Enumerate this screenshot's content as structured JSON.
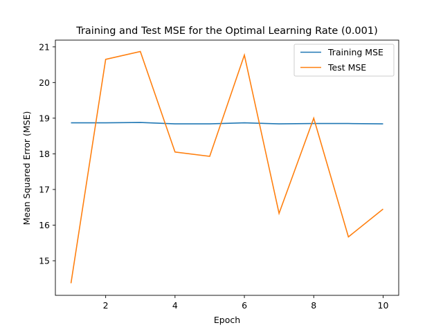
{
  "chart_data": {
    "type": "line",
    "title": "Training and Test MSE for the Optimal Learning Rate (0.001)",
    "xlabel": "Epoch",
    "ylabel": "Mean Squared Error (MSE)",
    "x": [
      1,
      2,
      3,
      4,
      5,
      6,
      7,
      8,
      9,
      10
    ],
    "xlim": [
      0.55,
      10.45
    ],
    "ylim": [
      14.03,
      21.19
    ],
    "xticks": [
      2,
      4,
      6,
      8,
      10
    ],
    "yticks": [
      15,
      16,
      17,
      18,
      19,
      20,
      21
    ],
    "grid": false,
    "legend_position": "top-right",
    "series": [
      {
        "name": "Training MSE",
        "color": "#1f77b4",
        "values": [
          18.87,
          18.87,
          18.88,
          18.84,
          18.84,
          18.87,
          18.84,
          18.85,
          18.85,
          18.84
        ]
      },
      {
        "name": "Test MSE",
        "color": "#ff7f0e",
        "values": [
          14.37,
          20.65,
          20.87,
          18.05,
          17.93,
          20.77,
          16.33,
          19.0,
          15.67,
          16.45
        ]
      }
    ]
  }
}
